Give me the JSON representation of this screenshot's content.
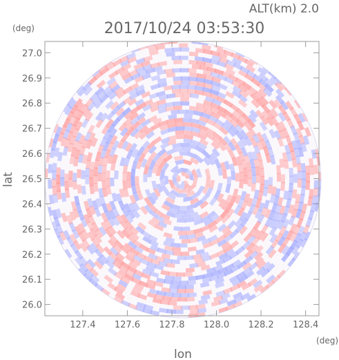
{
  "header": {
    "altitude_label": "ALT(km) 2.0",
    "timestamp": "2017/10/24 03:53:30"
  },
  "chart_data": {
    "type": "heatmap",
    "title": "2017/10/24 03:53:30",
    "xlabel": "lon",
    "ylabel": "lat",
    "xunit": "(deg)",
    "yunit": "(deg)",
    "xlim": [
      127.23,
      128.46
    ],
    "ylim": [
      25.955,
      27.045
    ],
    "xticks": [
      "127.4",
      "127.6",
      "127.8",
      "128.0",
      "128.2",
      "128.4"
    ],
    "yticks": [
      "26.0",
      "26.1",
      "26.2",
      "26.3",
      "26.4",
      "26.5",
      "26.6",
      "26.7",
      "26.8",
      "26.9",
      "27.0"
    ],
    "center": {
      "lon": 127.85,
      "lat": 26.5
    },
    "grid": false,
    "colors": {
      "positive": "#ff9a9a",
      "negative": "#a0a8ff",
      "frame": "#999999"
    }
  }
}
